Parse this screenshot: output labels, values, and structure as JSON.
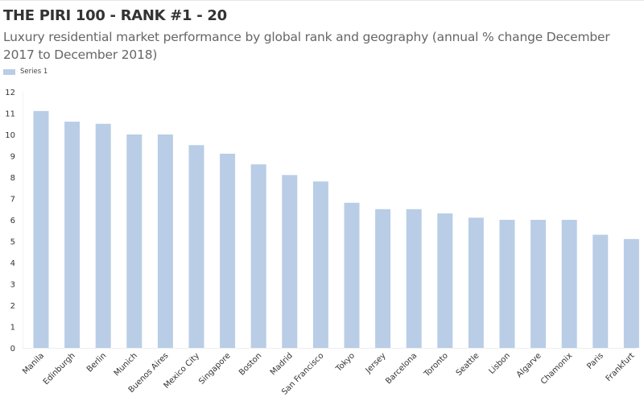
{
  "header": {
    "title": "THE PIRI 100 - RANK #1 - 20",
    "subtitle": "Luxury residential market performance by global rank and geography (annual % change December 2017 to December 2018)"
  },
  "legend": {
    "label": "Series 1",
    "color": "#b9cde6"
  },
  "chart_data": {
    "type": "bar",
    "title": "THE PIRI 100 - RANK #1 - 20",
    "subtitle": "Luxury residential market performance by global rank and geography (annual % change December 2017 to December 2018)",
    "xlabel": "",
    "ylabel": "",
    "ylim": [
      0,
      12
    ],
    "yticks": [
      "0",
      "1",
      "2",
      "3",
      "4",
      "5",
      "6",
      "7",
      "8",
      "9",
      "10",
      "11",
      "12"
    ],
    "grid": false,
    "legend_position": "top-left",
    "categories": [
      "Manila",
      "Edinburgh",
      "Berlin",
      "Munich",
      "Buenos Aires",
      "Mexico City",
      "Singapore",
      "Boston",
      "Madrid",
      "San Francisco",
      "Tokyo",
      "Jersey",
      "Barcelona",
      "Toronto",
      "Seattle",
      "Lisbon",
      "Algarve",
      "Chamonix",
      "Paris",
      "Frankfurt"
    ],
    "series": [
      {
        "name": "Series 1",
        "color": "#b9cde6",
        "values": [
          11.1,
          10.6,
          10.5,
          10.0,
          10.0,
          9.5,
          9.1,
          8.6,
          8.1,
          7.8,
          6.8,
          6.5,
          6.5,
          6.3,
          6.1,
          6.0,
          6.0,
          6.0,
          5.3,
          5.1
        ]
      }
    ]
  }
}
